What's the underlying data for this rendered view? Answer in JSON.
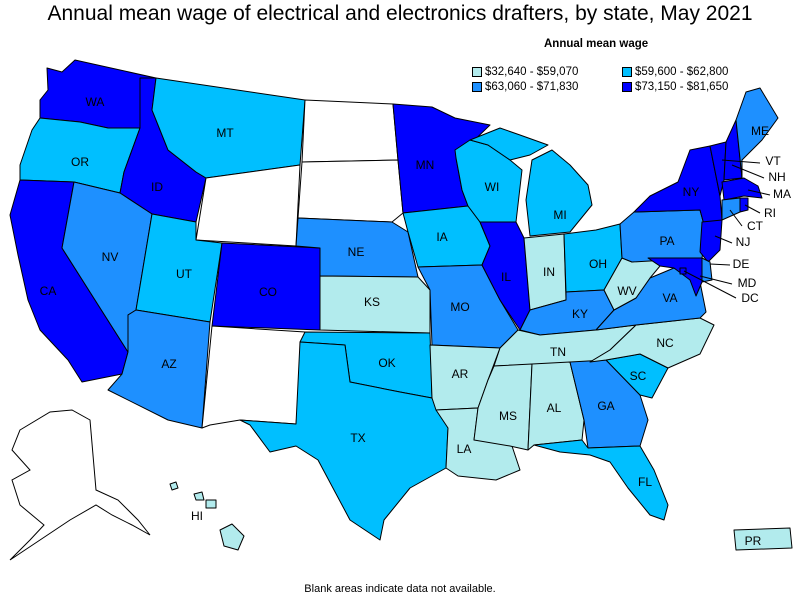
{
  "title": "Annual mean wage of electrical and electronics drafters, by state, May 2021",
  "legend": {
    "title": "Annual mean wage",
    "items": [
      {
        "label": "$32,640 - $59,070",
        "color": "#b2ebed"
      },
      {
        "label": "$59,600 - $62,800",
        "color": "#00bfff"
      },
      {
        "label": "$63,060 - $71,830",
        "color": "#1e90ff"
      },
      {
        "label": "$73,150 - $81,650",
        "color": "#0000ff"
      }
    ]
  },
  "footnote": "Blank areas indicate data not available.",
  "no_data_color": "#ffffff",
  "states": {
    "WA": {
      "label": "WA",
      "tier": 3
    },
    "OR": {
      "label": "OR",
      "tier": 1
    },
    "CA": {
      "label": "CA",
      "tier": 3
    },
    "ID": {
      "label": "ID",
      "tier": 3
    },
    "NV": {
      "label": "NV",
      "tier": 2
    },
    "MT": {
      "label": "MT",
      "tier": 1
    },
    "WY": {
      "label": "",
      "tier": null
    },
    "UT": {
      "label": "UT",
      "tier": 1
    },
    "AZ": {
      "label": "AZ",
      "tier": 2
    },
    "CO": {
      "label": "CO",
      "tier": 3
    },
    "NM": {
      "label": "",
      "tier": null
    },
    "ND": {
      "label": "",
      "tier": null
    },
    "SD": {
      "label": "",
      "tier": null
    },
    "NE": {
      "label": "NE",
      "tier": 2
    },
    "KS": {
      "label": "KS",
      "tier": 0
    },
    "OK": {
      "label": "OK",
      "tier": 1
    },
    "TX": {
      "label": "TX",
      "tier": 1
    },
    "MN": {
      "label": "MN",
      "tier": 3
    },
    "IA": {
      "label": "IA",
      "tier": 1
    },
    "MO": {
      "label": "MO",
      "tier": 2
    },
    "AR": {
      "label": "AR",
      "tier": 0
    },
    "LA": {
      "label": "LA",
      "tier": 0
    },
    "WI": {
      "label": "WI",
      "tier": 1
    },
    "IL": {
      "label": "IL",
      "tier": 3
    },
    "MI": {
      "label": "MI",
      "tier": 1
    },
    "IN": {
      "label": "IN",
      "tier": 0
    },
    "OH": {
      "label": "OH",
      "tier": 1
    },
    "KY": {
      "label": "KY",
      "tier": 2
    },
    "TN": {
      "label": "TN",
      "tier": 0
    },
    "MS": {
      "label": "MS",
      "tier": 0
    },
    "AL": {
      "label": "AL",
      "tier": 0
    },
    "GA": {
      "label": "GA",
      "tier": 2
    },
    "FL": {
      "label": "FL",
      "tier": 1
    },
    "SC": {
      "label": "SC",
      "tier": 1
    },
    "NC": {
      "label": "NC",
      "tier": 0
    },
    "VA": {
      "label": "VA",
      "tier": 2
    },
    "WV": {
      "label": "WV",
      "tier": 0
    },
    "PA": {
      "label": "PA",
      "tier": 2
    },
    "NY": {
      "label": "NY",
      "tier": 3
    },
    "VT": {
      "label": "VT",
      "tier": 3
    },
    "NH": {
      "label": "NH",
      "tier": 3
    },
    "ME": {
      "label": "ME",
      "tier": 2
    },
    "MA": {
      "label": "MA",
      "tier": 3
    },
    "RI": {
      "label": "RI",
      "tier": 3
    },
    "CT": {
      "label": "CT",
      "tier": 2
    },
    "NJ": {
      "label": "NJ",
      "tier": 3
    },
    "DE": {
      "label": "DE",
      "tier": 2
    },
    "MD": {
      "label": "MD",
      "tier": 3
    },
    "DC": {
      "label": "DC",
      "tier": 3
    },
    "AK": {
      "label": "",
      "tier": null
    },
    "HI": {
      "label": "HI",
      "tier": 0
    },
    "PR": {
      "label": "PR",
      "tier": 0
    }
  }
}
